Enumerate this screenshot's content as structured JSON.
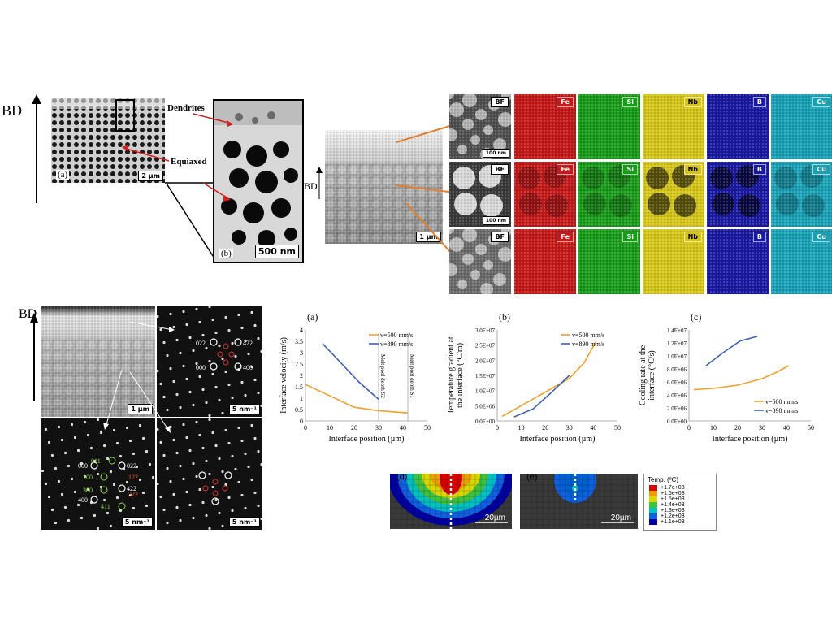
{
  "panel_top_left": {
    "bd_label": "BD",
    "a_label": "(a)",
    "a_scale": "2 µm",
    "b_label": "(b)",
    "b_scale": "500 nm",
    "dendrites_label": "Dendrites",
    "equiaxed_label": "Equiaxed"
  },
  "panel_top_right": {
    "bd_label": "BD",
    "scale_main": "1 µm",
    "bf_label": "BF",
    "bf_scales": [
      "100 nm",
      "100 nm",
      ""
    ],
    "elements": [
      "Fe",
      "Si",
      "Nb",
      "B",
      "Cu"
    ],
    "element_colors": [
      "#c41a1a",
      "#1a9a1a",
      "#d4c41a",
      "#1a1aa0",
      "#1aa0b4"
    ]
  },
  "panel_bottom_left": {
    "bd_label": "BD",
    "scale_main": "1 µm",
    "scale_diff": "5 nm⁻¹",
    "spots_tr_white": [
      "022",
      "422",
      "000",
      "400"
    ],
    "spots_bl_white": [
      "000",
      "022",
      "422",
      "400"
    ],
    "spots_bl_green": [
      "011",
      "100",
      "300",
      "411"
    ],
    "spots_bl_red": [
      "122",
      "322"
    ]
  },
  "charts": {
    "a": {
      "panel_label": "(a)",
      "xlabel": "Interface position (µm)",
      "ylabel": "Interface velocity (m/s)",
      "xticks": [
        "0",
        "10",
        "20",
        "30",
        "40",
        "50"
      ],
      "yticks": [
        "0",
        "0.5",
        "1",
        "1.5",
        "2",
        "2.5",
        "3",
        "3.5",
        "4"
      ],
      "annot1": "Melt pool depth S2",
      "annot2": "Melt pool depth S1",
      "legend": [
        "v=500 mm/s",
        "v=890 mm/s"
      ]
    },
    "b": {
      "panel_label": "(b)",
      "xlabel": "Interface position (µm)",
      "ylabel1": "Temperature gradient at",
      "ylabel2": "the interface (°C/m)",
      "xticks": [
        "0",
        "10",
        "20",
        "30",
        "40",
        "50"
      ],
      "yticks": [
        "0.0E+00",
        "5.0E+06",
        "1.0E+07",
        "1.5E+07",
        "2.0E+07",
        "2.5E+07",
        "3.0E+07"
      ],
      "legend": [
        "v=500 mm/s",
        "v=890 mm/s"
      ]
    },
    "c": {
      "panel_label": "(c)",
      "xlabel": "Interface position (µm)",
      "ylabel1": "Cooling rate at the",
      "ylabel2": "interface (°C/s)",
      "xticks": [
        "0",
        "10",
        "20",
        "30",
        "40",
        "50"
      ],
      "yticks": [
        "0.0E+00",
        "2.0E+06",
        "4.0E+06",
        "6.0E+06",
        "8.0E+06",
        "1.0E+07",
        "1.2E+07",
        "1.4E+07"
      ],
      "legend": [
        "v=500 mm/s",
        "v=890 mm/s"
      ]
    }
  },
  "chart_data": [
    {
      "type": "line",
      "xlabel": "Interface position (µm)",
      "ylabel": "Interface velocity (m/s)",
      "xlim": [
        0,
        50
      ],
      "ylim": [
        0,
        4
      ],
      "series": [
        {
          "name": "v=500 mm/s",
          "color": "#f0a030",
          "x": [
            0,
            10,
            20,
            30,
            42
          ],
          "y": [
            1.6,
            1.1,
            0.6,
            0.45,
            0.35
          ]
        },
        {
          "name": "v=890 mm/s",
          "color": "#4060b0",
          "x": [
            7,
            15,
            22,
            30
          ],
          "y": [
            3.4,
            2.5,
            1.7,
            0.95
          ]
        }
      ]
    },
    {
      "type": "line",
      "xlabel": "Interface position (µm)",
      "ylabel": "Temperature gradient at the interface (°C/m)",
      "xlim": [
        0,
        50
      ],
      "ylim": [
        0,
        30000000
      ],
      "series": [
        {
          "name": "v=500 mm/s",
          "color": "#f0a030",
          "x": [
            2,
            10,
            20,
            30,
            36,
            41
          ],
          "y": [
            1500000,
            5000000,
            9500000,
            14000000,
            19000000,
            26000000
          ]
        },
        {
          "name": "v=890 mm/s",
          "color": "#4060b0",
          "x": [
            7,
            15,
            22,
            30
          ],
          "y": [
            1300000,
            4000000,
            9000000,
            15000000
          ]
        }
      ]
    },
    {
      "type": "line",
      "xlabel": "Interface position (µm)",
      "ylabel": "Cooling rate at the interface (°C/s)",
      "xlim": [
        0,
        50
      ],
      "ylim": [
        0,
        14000000
      ],
      "series": [
        {
          "name": "v=500 mm/s",
          "color": "#f0a030",
          "x": [
            2,
            10,
            20,
            30,
            36,
            41
          ],
          "y": [
            4800000,
            5000000,
            5500000,
            6500000,
            7500000,
            8500000
          ]
        },
        {
          "name": "v=890 mm/s",
          "color": "#4060b0",
          "x": [
            7,
            14,
            21,
            28
          ],
          "y": [
            8500000,
            10500000,
            12300000,
            13000000
          ]
        }
      ]
    }
  ],
  "sim": {
    "d_label": "(d)",
    "e_label": "(e)",
    "scale": "20µm",
    "legend_title": "Temp. (ºC)",
    "legend_values": [
      "+1.7e+03",
      "+1.6e+03",
      "+1.5e+03",
      "+1.4e+03",
      "+1.3e+03",
      "+1.2e+03",
      "+1.1e+03"
    ],
    "legend_colors": [
      "#d80000",
      "#e8a000",
      "#d8d800",
      "#40c040",
      "#00c0c0",
      "#1060e0",
      "#0000a0"
    ]
  }
}
